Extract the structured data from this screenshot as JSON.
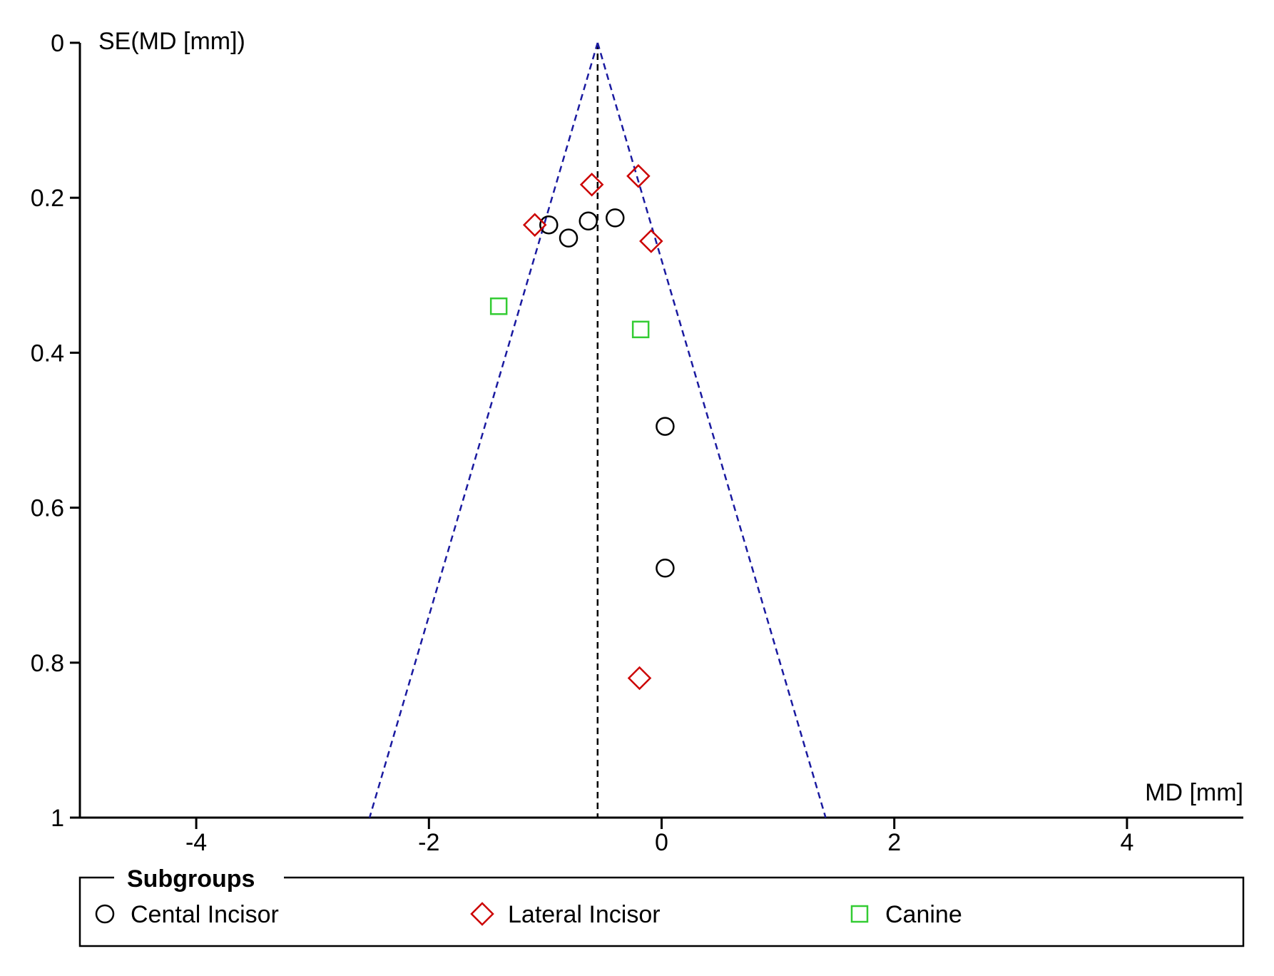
{
  "chart_data": {
    "type": "scatter",
    "chart_kind": "funnel plot",
    "xlabel": "MD [mm]",
    "ylabel": "SE(MD [mm])",
    "xlim": [
      -5,
      5
    ],
    "ylim": [
      0,
      1
    ],
    "y_reversed": true,
    "x_ticks": [
      -4,
      -2,
      0,
      2,
      4
    ],
    "x_tick_labels": [
      "-4",
      "-2",
      "0",
      "2",
      "4"
    ],
    "y_ticks": [
      0,
      0.2,
      0.4,
      0.6,
      0.8,
      1
    ],
    "y_tick_labels": [
      "0",
      "0.2",
      "0.4",
      "0.6",
      "0.8",
      "1"
    ],
    "pooled_effect": -0.55,
    "funnel": {
      "apex": [
        -0.55,
        0
      ],
      "base_left": [
        -2.51,
        1
      ],
      "base_right": [
        1.41,
        1
      ]
    },
    "series": [
      {
        "name": "Cental Incisor",
        "marker": "circle",
        "color": "#000000",
        "points": [
          {
            "x": -0.97,
            "y": 0.235
          },
          {
            "x": -0.8,
            "y": 0.252
          },
          {
            "x": -0.63,
            "y": 0.23
          },
          {
            "x": -0.4,
            "y": 0.226
          },
          {
            "x": 0.03,
            "y": 0.495
          },
          {
            "x": 0.03,
            "y": 0.678
          }
        ]
      },
      {
        "name": "Lateral Incisor",
        "marker": "diamond",
        "color": "#cc0000",
        "points": [
          {
            "x": -0.2,
            "y": 0.172
          },
          {
            "x": -0.6,
            "y": 0.183
          },
          {
            "x": -1.09,
            "y": 0.235
          },
          {
            "x": -0.09,
            "y": 0.256
          },
          {
            "x": -0.19,
            "y": 0.82
          }
        ]
      },
      {
        "name": "Canine",
        "marker": "square",
        "color": "#33cc33",
        "points": [
          {
            "x": -1.4,
            "y": 0.34
          },
          {
            "x": -0.18,
            "y": 0.37
          }
        ]
      }
    ],
    "legend": {
      "title": "Subgroups",
      "placement": "bottom",
      "entries": [
        "Cental Incisor",
        "Lateral Incisor",
        "Canine"
      ]
    }
  }
}
